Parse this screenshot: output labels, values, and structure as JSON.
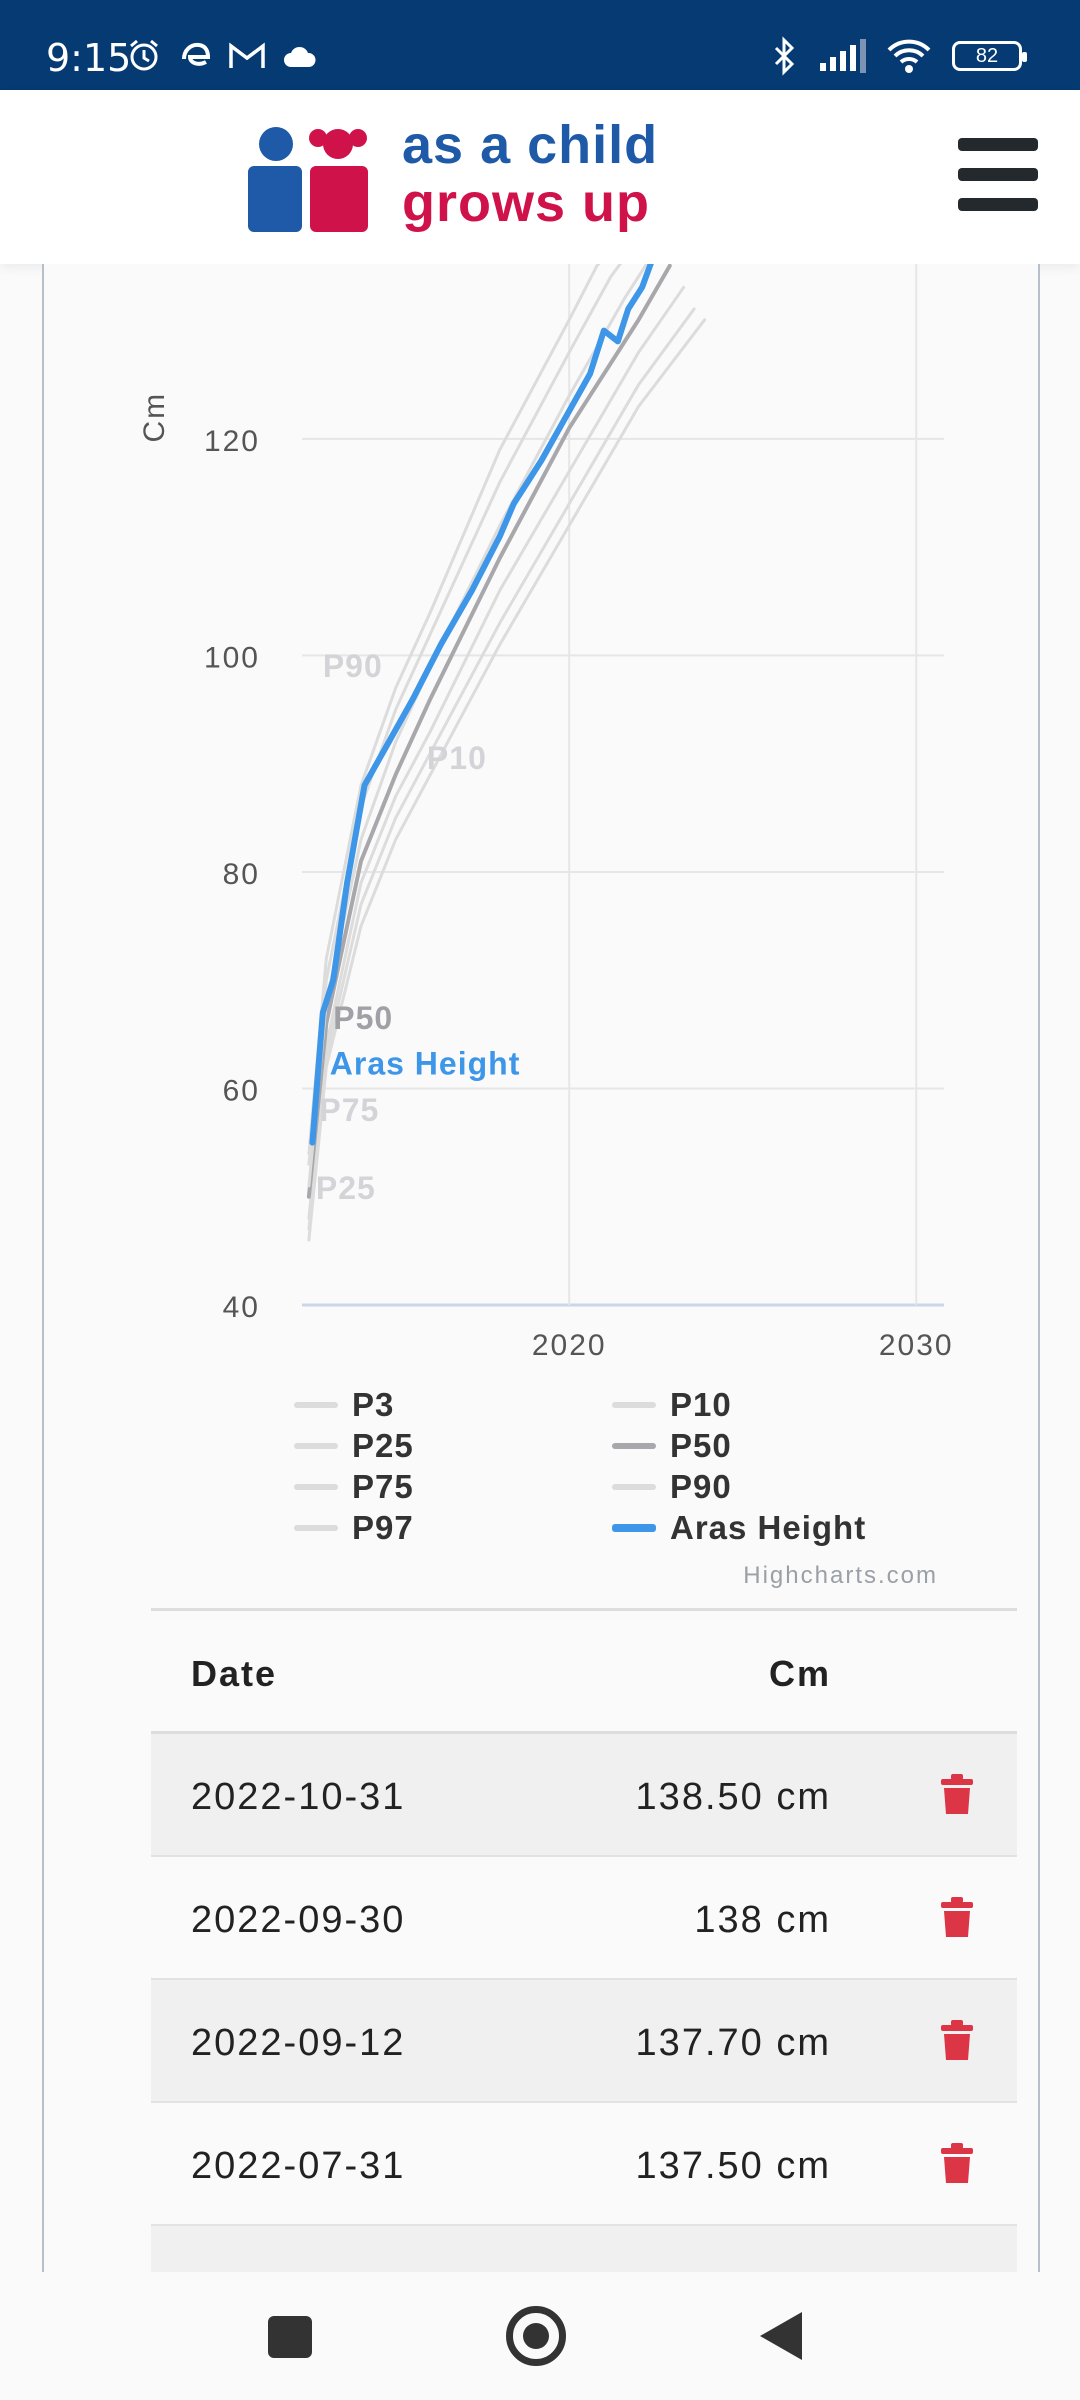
{
  "status_bar": {
    "time": "9:15",
    "left_icons": [
      "alarm-icon",
      "edge-icon",
      "gmail-icon",
      "cloud-icon"
    ],
    "right_icons": [
      "bluetooth-icon",
      "signal-icon",
      "wifi-icon"
    ],
    "battery": "82"
  },
  "header": {
    "logo_line1": "as a child",
    "logo_line2": "grows up",
    "menu_icon": "hamburger-icon",
    "colors": {
      "blue": "#1f5aa8",
      "red": "#d0124b"
    }
  },
  "chart_data": {
    "type": "line",
    "ylabel": "Cm",
    "y_ticks": [
      40,
      60,
      80,
      100,
      120
    ],
    "x_ticks": [
      2020,
      2030
    ],
    "ylim": [
      40,
      138
    ],
    "xlim": [
      2012.3,
      2030.8
    ],
    "grid": true,
    "legend_position": "bottom",
    "series": [
      {
        "name": "P3",
        "color": "#dcdcdc",
        "width": 3,
        "x": [
          2012.5,
          2013,
          2014,
          2015,
          2016,
          2018,
          2020,
          2022,
          2023.9
        ],
        "y": [
          46,
          62,
          75,
          83,
          89,
          101,
          112,
          123,
          131
        ]
      },
      {
        "name": "P10",
        "color": "#dcdcdc",
        "width": 3,
        "x": [
          2012.5,
          2013,
          2014,
          2015,
          2016,
          2018,
          2020,
          2022,
          2023.6
        ],
        "y": [
          47,
          63,
          77,
          85,
          91,
          103,
          114,
          125,
          132
        ]
      },
      {
        "name": "P25",
        "color": "#dcdcdc",
        "width": 3,
        "x": [
          2012.5,
          2013,
          2014,
          2015,
          2016,
          2018,
          2020,
          2022,
          2023.3
        ],
        "y": [
          48,
          64,
          79,
          87,
          93,
          106,
          117,
          128,
          134
        ]
      },
      {
        "name": "P50",
        "color": "#a8a8ac",
        "width": 4,
        "x": [
          2012.5,
          2013,
          2014,
          2015,
          2016,
          2018,
          2020,
          2022,
          2022.9
        ],
        "y": [
          50,
          66,
          81,
          89,
          96,
          109,
          121,
          131,
          136
        ]
      },
      {
        "name": "P75",
        "color": "#dcdcdc",
        "width": 3,
        "x": [
          2012.5,
          2013,
          2014,
          2015,
          2016,
          2018,
          2020,
          2021.6,
          2022.4
        ],
        "y": [
          51,
          68,
          83,
          92,
          99,
          112,
          124,
          133,
          137
        ]
      },
      {
        "name": "P90",
        "color": "#dcdcdc",
        "width": 3,
        "x": [
          2012.5,
          2013,
          2014,
          2015,
          2016,
          2018,
          2020,
          2021.2,
          2021.9
        ],
        "y": [
          53,
          70,
          86,
          95,
          102,
          116,
          128,
          135,
          138
        ]
      },
      {
        "name": "P97",
        "color": "#dcdcdc",
        "width": 3,
        "x": [
          2012.5,
          2013,
          2014,
          2015,
          2016,
          2018,
          2020,
          2020.8,
          2021.4
        ],
        "y": [
          54,
          72,
          88,
          97,
          104,
          119,
          131,
          136,
          138
        ]
      },
      {
        "name": "Aras Height",
        "color": "#3d96e8",
        "width": 6,
        "x": [
          2012.6,
          2012.9,
          2013.2,
          2013.6,
          2014.1,
          2014.8,
          2015.5,
          2016.3,
          2017.2,
          2018.0,
          2018.4,
          2018.6,
          2019.2,
          2019.9,
          2020.6,
          2021.0,
          2021.4,
          2021.7,
          2022.1,
          2022.5,
          2022.7
        ],
        "y": [
          55,
          67,
          70,
          79,
          88,
          92,
          96,
          101,
          106,
          111,
          114,
          115,
          118,
          122,
          126,
          130,
          129,
          132,
          134,
          137.5,
          138.5
        ]
      }
    ],
    "line_labels": [
      {
        "text": "P90",
        "series": "P90",
        "x": 2012.9,
        "y": 98,
        "color": "#d4d4d8"
      },
      {
        "text": "P10",
        "series": "P10",
        "x": 2015.9,
        "y": 89.5,
        "color": "#d4d4d8"
      },
      {
        "text": "P50",
        "series": "P50",
        "x": 2013.2,
        "y": 65.5,
        "color": "#a0a0a6"
      },
      {
        "text": "Aras Height",
        "series": "Aras Height",
        "x": 2013.1,
        "y": 61.3,
        "color": "#3d96e8"
      },
      {
        "text": "P75",
        "series": "P75",
        "x": 2012.8,
        "y": 57,
        "color": "#d4d4d8"
      },
      {
        "text": "P25",
        "series": "P25",
        "x": 2012.7,
        "y": 49.8,
        "color": "#d4d4d8"
      }
    ]
  },
  "legend": {
    "items": [
      {
        "label": "P3",
        "color": "#dcdcdc"
      },
      {
        "label": "P10",
        "color": "#dcdcdc"
      },
      {
        "label": "P25",
        "color": "#dcdcdc"
      },
      {
        "label": "P50",
        "color": "#a8a8ac"
      },
      {
        "label": "P75",
        "color": "#dcdcdc"
      },
      {
        "label": "P90",
        "color": "#dcdcdc"
      },
      {
        "label": "P97",
        "color": "#dcdcdc"
      },
      {
        "label": "Aras Height",
        "color": "#3d96e8"
      }
    ]
  },
  "credits": "Highcharts.com",
  "table": {
    "headers": {
      "date": "Date",
      "cm": "Cm"
    },
    "rows": [
      {
        "date": "2022-10-31",
        "cm": "138.50 cm"
      },
      {
        "date": "2022-09-30",
        "cm": "138 cm"
      },
      {
        "date": "2022-09-12",
        "cm": "137.70 cm"
      },
      {
        "date": "2022-07-31",
        "cm": "137.50 cm"
      }
    ],
    "delete_icon": "trash-icon",
    "delete_color": "#dc3545"
  },
  "nav_bar": {
    "icons": [
      "recents-icon",
      "home-icon",
      "back-icon"
    ]
  }
}
